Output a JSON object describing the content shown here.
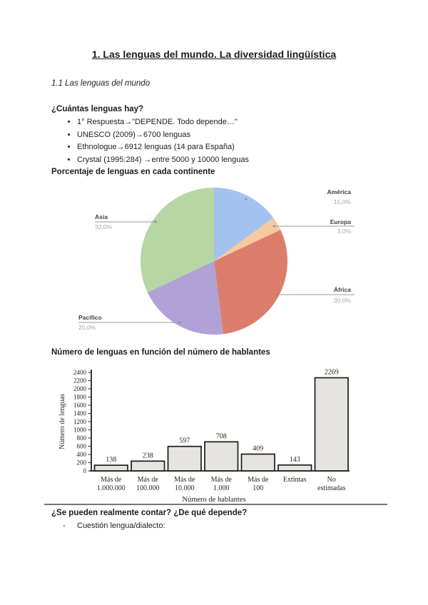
{
  "document": {
    "title": "1. Las lenguas del mundo. La diversidad lingüística",
    "subtitle": "1.1 Las lenguas del mundo",
    "questions_heading": "¿Cuántas lenguas hay?",
    "questions_bullets": [
      "1° Respuesta→\"DEPENDE. Todo depende…\"",
      "UNESCO (2009)→6700 lenguas",
      "Ethnologue→6912 lenguas (14 para España)",
      "Crystal (1995:284) →entre 5000 y 10000 lenguas"
    ],
    "pie_heading": "Porcentaje de lenguas en cada continente",
    "bar_heading": "Número de lenguas en función del número de hablantes",
    "footer_heading": "¿Se pueden realmente contar? ¿De qué depende?",
    "footer_bullets": [
      "Cuestión lengua/dialecto:"
    ]
  },
  "chart_data": [
    {
      "type": "pie",
      "title": "Porcentaje de lenguas en cada continente",
      "direction": "clockwise",
      "start_angle_deg": 0,
      "legend_position": "outside-labels",
      "slices": [
        {
          "label": "América",
          "value": 15.0,
          "pct_label": "15,0%",
          "color": "#a4c2f0"
        },
        {
          "label": "Europa",
          "value": 3.0,
          "pct_label": "3,0%",
          "color": "#f7c99e"
        },
        {
          "label": "África",
          "value": 30.0,
          "pct_label": "30,0%",
          "color": "#db7d6a"
        },
        {
          "label": "Pacífico",
          "value": 20.0,
          "pct_label": "20,0%",
          "color": "#b0a2d6"
        },
        {
          "label": "Asia",
          "value": 32.0,
          "pct_label": "32,0%",
          "color": "#b6d6a4"
        }
      ],
      "label_name_color": "#3f3f3f",
      "label_pct_color": "#a6a6a6",
      "leader_line_color": "#9a9a9a"
    },
    {
      "type": "bar",
      "title": "Número de lenguas en función del número de hablantes",
      "categories": [
        [
          "Más de",
          "1.000.000"
        ],
        [
          "Más de",
          "100.000"
        ],
        [
          "Más de",
          "10.000"
        ],
        [
          "Más de",
          "1.000"
        ],
        [
          "Más de",
          "100"
        ],
        [
          "Extintas"
        ],
        [
          "No",
          "estimadas"
        ]
      ],
      "values": [
        138,
        238,
        597,
        708,
        409,
        143,
        2269
      ],
      "value_labels": [
        "138",
        "238",
        "597",
        "708",
        "409",
        "143",
        "2269"
      ],
      "xlabel": "Número de hablantes",
      "ylabel": "Número de lenguas",
      "ylim": [
        0,
        2400
      ],
      "ytick_step": 200,
      "grid": false,
      "bar_fill": "#e5e4e1",
      "bar_border": "#1b1b1b",
      "text_color": "#242424"
    }
  ]
}
